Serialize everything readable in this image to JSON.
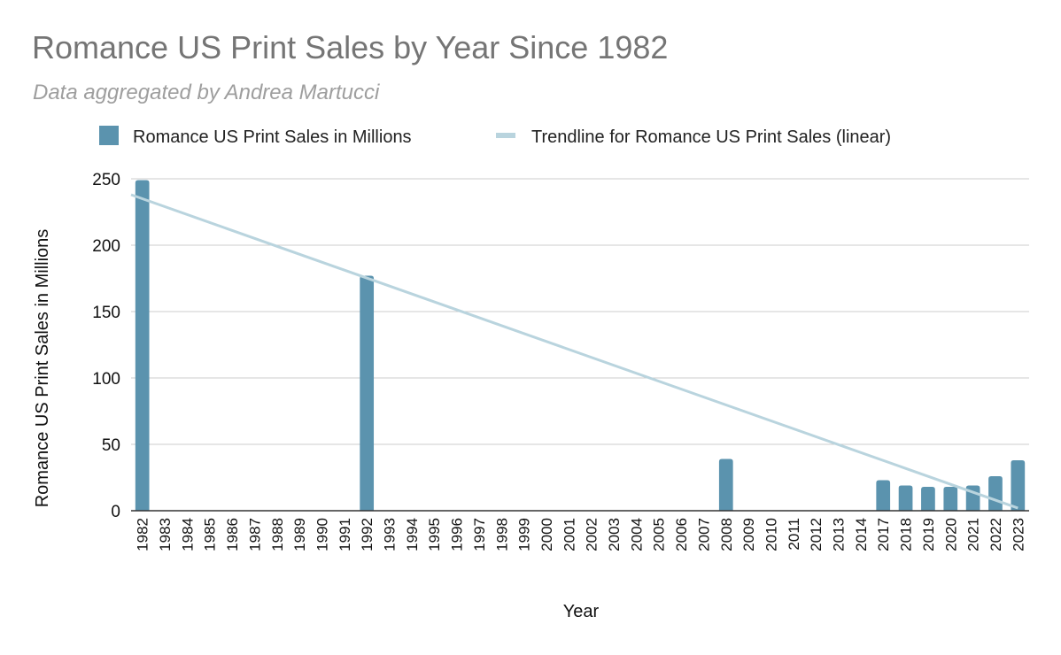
{
  "chart_data": {
    "type": "bar",
    "title": "Romance US Print Sales by Year Since 1982",
    "subtitle": "Data aggregated by Andrea Martucci",
    "xlabel": "Year",
    "ylabel": "Romance US Print Sales in Millions",
    "ylim": [
      0,
      250
    ],
    "yticks": [
      0,
      50,
      100,
      150,
      200,
      250
    ],
    "grid": true,
    "legend_position": "top",
    "categories": [
      "1982",
      "1983",
      "1984",
      "1985",
      "1986",
      "1987",
      "1988",
      "1989",
      "1990",
      "1991",
      "1992",
      "1993",
      "1994",
      "1995",
      "1996",
      "1997",
      "1998",
      "1999",
      "2000",
      "2001",
      "2002",
      "2003",
      "2004",
      "2005",
      "2006",
      "2007",
      "2008",
      "2009",
      "2010",
      "2011",
      "2012",
      "2013",
      "2014",
      "2017",
      "2018",
      "2019",
      "2020",
      "2021",
      "2022",
      "2023"
    ],
    "series": [
      {
        "name": "Romance US Print Sales in Millions",
        "color": "#5b93ae",
        "values": [
          249,
          null,
          null,
          null,
          null,
          null,
          null,
          null,
          null,
          null,
          177,
          null,
          null,
          null,
          null,
          null,
          null,
          null,
          null,
          null,
          null,
          null,
          null,
          null,
          null,
          null,
          39,
          null,
          null,
          null,
          null,
          null,
          null,
          23,
          19,
          18,
          18,
          19,
          26,
          38
        ]
      }
    ],
    "trendline": {
      "name": "Trendline for Romance US Print Sales (linear)",
      "type": "linear",
      "color": "#b9d4de",
      "start_value": 238,
      "end_value": 2
    }
  }
}
